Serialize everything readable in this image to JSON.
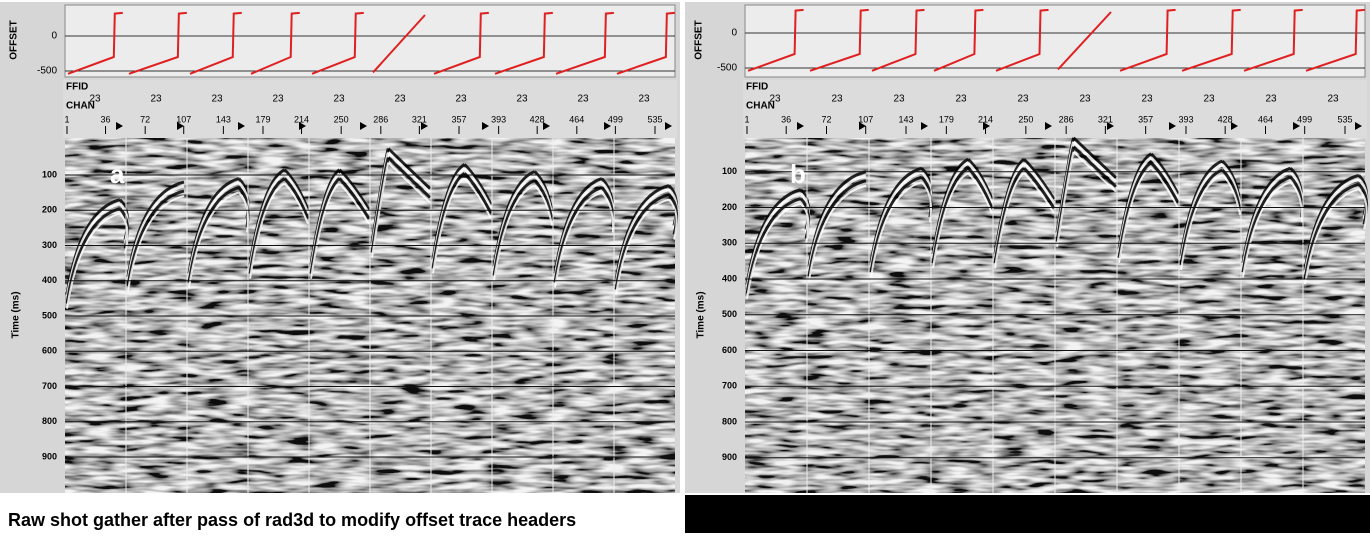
{
  "panels": [
    {
      "letter": "a",
      "offset_axis_label": "OFFSET",
      "offset_ticks": [
        0,
        -500
      ],
      "ffid_label": "FFID",
      "chan_label": "CHAN",
      "ffid_values": [
        "23",
        "23",
        "23",
        "23",
        "23",
        "23",
        "23",
        "23",
        "23",
        "23"
      ],
      "chan_values": [
        1,
        36,
        72,
        107,
        143,
        179,
        214,
        250,
        286,
        321,
        357,
        393,
        428,
        464,
        499,
        535
      ],
      "time_axis_label": "Time (ms)",
      "time_ticks": [
        100,
        200,
        300,
        400,
        500,
        600,
        700,
        800,
        900
      ]
    },
    {
      "letter": "b",
      "offset_axis_label": "OFFSET",
      "offset_ticks": [
        0,
        -500
      ],
      "ffid_label": "FFID",
      "chan_label": "CHAN",
      "ffid_values": [
        "23",
        "23",
        "23",
        "23",
        "23",
        "23",
        "23",
        "23",
        "23",
        "23"
      ],
      "chan_values": [
        1,
        36,
        72,
        107,
        143,
        179,
        214,
        250,
        286,
        321,
        357,
        393,
        428,
        464,
        499,
        535
      ],
      "time_axis_label": "Time (ms)",
      "time_ticks": [
        100,
        200,
        300,
        400,
        500,
        600,
        700,
        800,
        900
      ]
    }
  ],
  "caption": "Raw shot gather after pass of rad3d to modify offset trace headers"
}
